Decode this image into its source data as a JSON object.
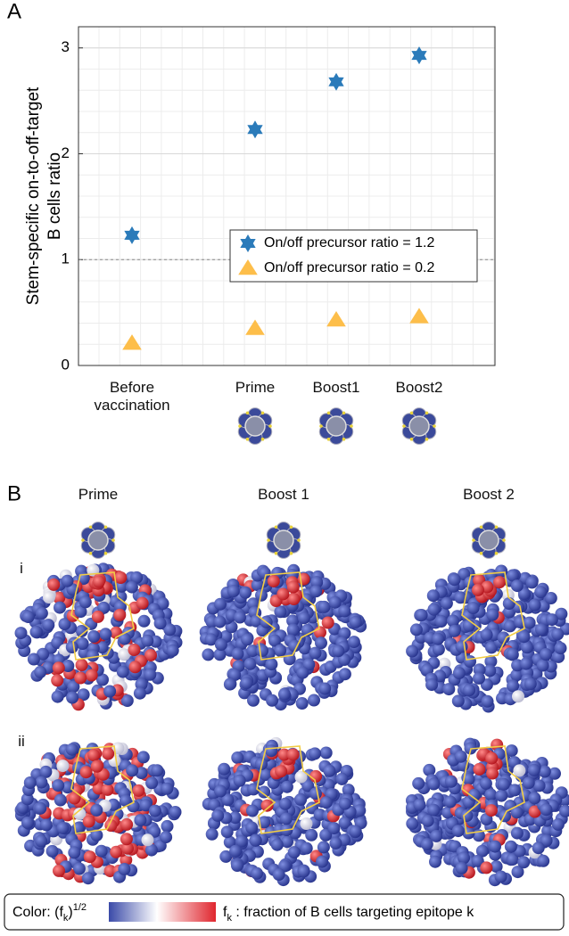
{
  "chart_data": {
    "type": "scatter",
    "panel_a": "A",
    "ylabel": [
      "Stem-specific on-to-off-target",
      "B cells ratio"
    ],
    "categories": [
      "Before vaccination",
      "Prime",
      "Boost1",
      "Boost2"
    ],
    "series": [
      {
        "name": "On/off precursor ratio = 1.2",
        "color": "#2b7bba",
        "marker": "hexagram",
        "values": [
          1.23,
          2.23,
          2.68,
          2.93
        ]
      },
      {
        "name": "On/off precursor ratio = 0.2",
        "color": "#fdbe4a",
        "marker": "triangle",
        "values": [
          0.21,
          0.35,
          0.43,
          0.46
        ]
      }
    ],
    "ylim": [
      0,
      3.2
    ],
    "yticks": [
      0,
      1,
      2,
      3
    ],
    "grid": true,
    "reference_line": 1,
    "legend": "lower right"
  },
  "panel_b": {
    "label": "B",
    "columns": [
      "Prime",
      "Boost 1",
      "Boost 2"
    ],
    "rows": [
      "i",
      "ii"
    ],
    "colorbar": {
      "label_parts": [
        "Color: (f",
        "k",
        ")",
        "1/2"
      ],
      "right_parts": [
        "f",
        "k",
        " : fraction of B cells targeting epitope k"
      ]
    }
  }
}
